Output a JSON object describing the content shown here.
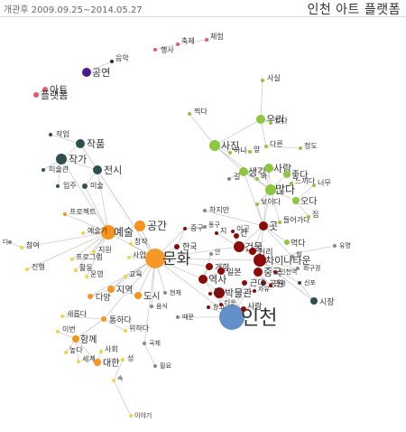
{
  "header": {
    "period": "개관후 2009.09.25~2014.05.27",
    "title": "인천 아트 플랫폼"
  },
  "colors": {
    "orange": "#f7941d",
    "yellow": "#f3d34a",
    "green": "#8dc63f",
    "darkred": "#8b0a0a",
    "darkgreen": "#2f4f4f",
    "pink": "#e05a72",
    "blue": "#5b8ac6",
    "purple": "#4b1a8c",
    "navy": "#1a2a4a",
    "gray": "#888888",
    "edge": "#cccccc"
  },
  "nodes": [
    {
      "id": "n1",
      "label": "행사",
      "color": "pink"
    },
    {
      "id": "n2",
      "label": "축제",
      "color": "pink"
    },
    {
      "id": "n3",
      "label": "체험",
      "color": "pink"
    },
    {
      "id": "n4",
      "label": "음악",
      "color": "navy"
    },
    {
      "id": "n5",
      "label": "공연",
      "color": "purple"
    },
    {
      "id": "n6",
      "label": "아트",
      "color": "pink"
    },
    {
      "id": "n7",
      "label": "플랫폼",
      "color": "pink"
    },
    {
      "id": "n8",
      "label": "작업",
      "color": "darkgreen"
    },
    {
      "id": "n9",
      "label": "작품",
      "color": "darkgreen"
    },
    {
      "id": "n10",
      "label": "작가",
      "color": "darkgreen"
    },
    {
      "id": "n11",
      "label": "전시",
      "color": "darkgreen"
    },
    {
      "id": "n12",
      "label": "미술관",
      "color": "darkgreen"
    },
    {
      "id": "n13",
      "label": "입주",
      "color": "darkgreen"
    },
    {
      "id": "n14",
      "label": "미술",
      "color": "darkgreen"
    },
    {
      "id": "n15",
      "label": "프로젝트",
      "color": "orange"
    },
    {
      "id": "n16",
      "label": "예술",
      "color": "orange"
    },
    {
      "id": "n17",
      "label": "공간",
      "color": "orange"
    },
    {
      "id": "n18",
      "label": "문화",
      "color": "orange"
    },
    {
      "id": "n19",
      "label": "참여",
      "color": "yellow"
    },
    {
      "id": "n20",
      "label": "진행",
      "color": "yellow"
    },
    {
      "id": "n21",
      "label": "예술가",
      "color": "yellow"
    },
    {
      "id": "n22",
      "label": "지원",
      "color": "yellow"
    },
    {
      "id": "n23",
      "label": "프로그램",
      "color": "yellow"
    },
    {
      "id": "n24",
      "label": "활동",
      "color": "yellow"
    },
    {
      "id": "n25",
      "label": "운영",
      "color": "yellow"
    },
    {
      "id": "n26",
      "label": "창작",
      "color": "yellow"
    },
    {
      "id": "n27",
      "label": "사업",
      "color": "yellow"
    },
    {
      "id": "n28",
      "label": "교육",
      "color": "yellow"
    },
    {
      "id": "n29",
      "label": "다양",
      "color": "orange"
    },
    {
      "id": "n30",
      "label": "지역",
      "color": "orange"
    },
    {
      "id": "n31",
      "label": "도시",
      "color": "orange"
    },
    {
      "id": "n32",
      "label": "새롭다",
      "color": "yellow"
    },
    {
      "id": "n33",
      "label": "통하다",
      "color": "orange"
    },
    {
      "id": "n34",
      "label": "이번",
      "color": "yellow"
    },
    {
      "id": "n35",
      "label": "함께",
      "color": "orange"
    },
    {
      "id": "n36",
      "label": "높다",
      "color": "yellow"
    },
    {
      "id": "n37",
      "label": "세계",
      "color": "yellow"
    },
    {
      "id": "n38",
      "label": "대한",
      "color": "orange"
    },
    {
      "id": "n39",
      "label": "사회",
      "color": "yellow"
    },
    {
      "id": "n40",
      "label": "위하다",
      "color": "yellow"
    },
    {
      "id": "n41",
      "label": "성",
      "color": "yellow"
    },
    {
      "id": "n42",
      "label": "속",
      "color": "yellow"
    },
    {
      "id": "n43",
      "label": "이야기",
      "color": "yellow"
    },
    {
      "id": "n44",
      "label": "국제",
      "color": "gray"
    },
    {
      "id": "n45",
      "label": "필요",
      "color": "gray"
    },
    {
      "id": "n46",
      "label": "음식",
      "color": "gray"
    },
    {
      "id": "n47",
      "label": "현재",
      "color": "gray"
    },
    {
      "id": "n48",
      "label": "때문",
      "color": "gray"
    },
    {
      "id": "n49",
      "label": "인천",
      "color": "blue"
    },
    {
      "id": "n50",
      "label": "역사",
      "color": "darkred"
    },
    {
      "id": "n51",
      "label": "박물관",
      "color": "darkred"
    },
    {
      "id": "n52",
      "label": "건물",
      "color": "darkred"
    },
    {
      "id": "n53",
      "label": "차이나타운",
      "color": "darkred"
    },
    {
      "id": "n54",
      "label": "중국",
      "color": "darkred"
    },
    {
      "id": "n55",
      "label": "개항",
      "color": "darkred"
    },
    {
      "id": "n56",
      "label": "일본",
      "color": "darkred"
    },
    {
      "id": "n57",
      "label": "곳",
      "color": "darkred"
    },
    {
      "id": "n58",
      "label": "거리",
      "color": "darkred"
    },
    {
      "id": "n59",
      "label": "공원",
      "color": "darkred"
    },
    {
      "id": "n60",
      "label": "근대",
      "color": "darkred"
    },
    {
      "id": "n61",
      "label": "한국",
      "color": "darkred"
    },
    {
      "id": "n62",
      "label": "창고",
      "color": "darkred"
    },
    {
      "id": "n63",
      "label": "시장",
      "color": "darkgreen"
    },
    {
      "id": "n64",
      "label": "신포",
      "color": "darkgreen"
    },
    {
      "id": "n65",
      "label": "유명",
      "color": "gray"
    },
    {
      "id": "n66",
      "label": "사진",
      "color": "green"
    },
    {
      "id": "n67",
      "label": "우리",
      "color": "green"
    },
    {
      "id": "n68",
      "label": "있다",
      "color": "green"
    },
    {
      "id": "n69",
      "label": "다른",
      "color": "green"
    },
    {
      "id": "n70",
      "label": "정도",
      "color": "green"
    },
    {
      "id": "n71",
      "label": "생각",
      "color": "green"
    },
    {
      "id": "n72",
      "label": "사람",
      "color": "green"
    },
    {
      "id": "n73",
      "label": "좋다",
      "color": "green"
    },
    {
      "id": "n74",
      "label": "많다",
      "color": "green"
    },
    {
      "id": "n75",
      "label": "느끼다",
      "color": "green"
    },
    {
      "id": "n76",
      "label": "보이다",
      "color": "green"
    },
    {
      "id": "n77",
      "label": "오다",
      "color": "green"
    },
    {
      "id": "n78",
      "label": "너무",
      "color": "green"
    },
    {
      "id": "n79",
      "label": "먹다",
      "color": "green"
    },
    {
      "id": "n80",
      "label": "들어가다",
      "color": "green"
    },
    {
      "id": "n81",
      "label": "집",
      "color": "green"
    },
    {
      "id": "n82",
      "label": "사실",
      "color": "green"
    },
    {
      "id": "n83",
      "label": "찍다",
      "color": "green"
    },
    {
      "id": "n84",
      "label": "하나",
      "color": "green"
    },
    {
      "id": "n85",
      "label": "앞",
      "color": "green"
    },
    {
      "id": "n86",
      "label": "바",
      "color": "green"
    },
    {
      "id": "n87",
      "label": "중구",
      "color": "darkred"
    },
    {
      "id": "n88",
      "label": "하지만",
      "color": "gray"
    },
    {
      "id": "n89",
      "label": "길",
      "color": "gray"
    },
    {
      "id": "n90",
      "label": "지",
      "color": "darkred"
    },
    {
      "id": "n91",
      "label": "이곳",
      "color": "darkred"
    },
    {
      "id": "n92",
      "label": "동구",
      "color": "gray"
    },
    {
      "id": "n93",
      "label": "안",
      "color": "gray"
    },
    {
      "id": "n94",
      "label": "건",
      "color": "darkred"
    },
    {
      "id": "n95",
      "label": "정",
      "color": "darkred"
    },
    {
      "id": "n96",
      "label": "사람",
      "color": "darkred"
    },
    {
      "id": "n97",
      "label": "인천역",
      "color": "darkred"
    },
    {
      "id": "n98",
      "label": "자유",
      "color": "darkred"
    },
    {
      "id": "n99",
      "label": "관광",
      "color": "darkred"
    },
    {
      "id": "n100",
      "label": "타운",
      "color": "darkred"
    },
    {
      "id": "n101",
      "label": "월",
      "color": "gray"
    },
    {
      "id": "n102",
      "label": "다",
      "color": "gray"
    },
    {
      "id": "n103",
      "label": "화구경",
      "color": "gray"
    }
  ]
}
